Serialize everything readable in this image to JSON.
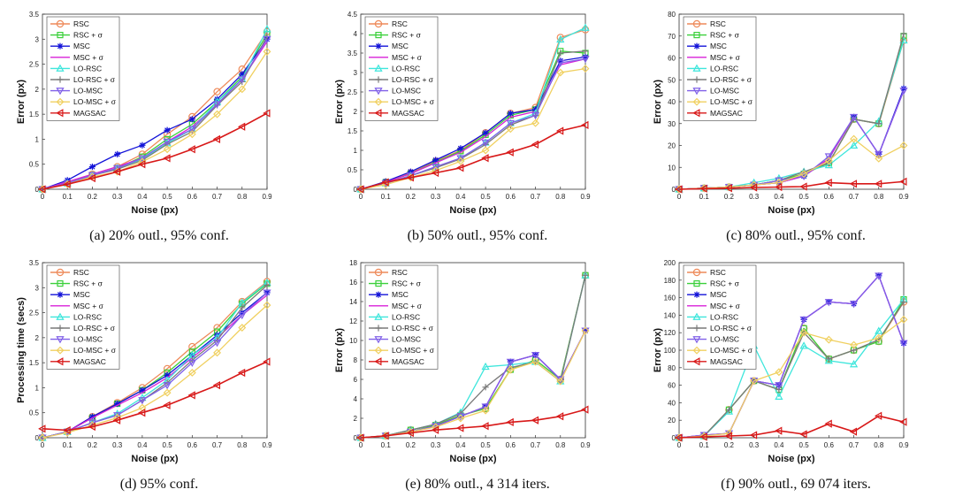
{
  "colors": {
    "RSC": "#ee8a5a",
    "RSC + σ": "#3ad03a",
    "MSC": "#1212d8",
    "MSC + σ": "#d820d8",
    "LO-RSC": "#3ee6dc",
    "LO-RSC + σ": "#7a7a7a",
    "LO-MSC": "#8060e8",
    "LO-MSC + σ": "#f0d060",
    "MAGSAC": "#d81818"
  },
  "markers": {
    "RSC": "circle",
    "RSC + σ": "square",
    "MSC": "star",
    "MSC + σ": "none",
    "LO-RSC": "triangle-up",
    "LO-RSC + σ": "plus",
    "LO-MSC": "triangle-down",
    "LO-MSC + σ": "diamond",
    "MAGSAC": "triangle-left"
  },
  "chart_data": [
    {
      "id": "a",
      "type": "line",
      "caption": "(a) 20% outl., 95% conf.",
      "xlabel": "Noise (px)",
      "ylabel": "Error (px)",
      "xlim": [
        0,
        0.9
      ],
      "ylim": [
        0,
        3.5
      ],
      "xticks": [
        "0",
        "0.1",
        "0.2",
        "0.3",
        "0.4",
        "0.5",
        "0.6",
        "0.7",
        "0.8",
        "0.9"
      ],
      "yticks": [
        "0",
        "0.5",
        "1",
        "1.5",
        "2",
        "2.5",
        "3",
        "3.5"
      ],
      "x": [
        0,
        0.1,
        0.2,
        0.3,
        0.4,
        0.5,
        0.6,
        0.7,
        0.8,
        0.9
      ],
      "series": [
        {
          "name": "RSC",
          "values": [
            0,
            0.12,
            0.3,
            0.45,
            0.7,
            1.1,
            1.45,
            1.95,
            2.4,
            3.15
          ]
        },
        {
          "name": "RSC + σ",
          "values": [
            0,
            0.12,
            0.28,
            0.42,
            0.65,
            1.0,
            1.3,
            1.75,
            2.25,
            3.1
          ]
        },
        {
          "name": "MSC",
          "values": [
            0,
            0.18,
            0.45,
            0.7,
            0.88,
            1.18,
            1.4,
            1.8,
            2.3,
            3.0
          ]
        },
        {
          "name": "MSC + σ",
          "values": [
            0,
            0.15,
            0.3,
            0.45,
            0.62,
            0.95,
            1.25,
            1.7,
            2.2,
            2.95
          ]
        },
        {
          "name": "LO-RSC",
          "values": [
            0,
            0.12,
            0.28,
            0.42,
            0.6,
            0.92,
            1.2,
            1.75,
            2.2,
            3.2
          ]
        },
        {
          "name": "LO-RSC + σ",
          "values": [
            0,
            0.12,
            0.28,
            0.4,
            0.58,
            0.9,
            1.15,
            1.68,
            2.15,
            3.05
          ]
        },
        {
          "name": "LO-MSC",
          "values": [
            0,
            0.12,
            0.28,
            0.42,
            0.62,
            0.95,
            1.2,
            1.7,
            2.2,
            3.0
          ]
        },
        {
          "name": "LO-MSC + σ",
          "values": [
            0,
            0.1,
            0.25,
            0.35,
            0.55,
            0.8,
            1.1,
            1.5,
            2.0,
            2.75
          ]
        },
        {
          "name": "MAGSAC",
          "values": [
            0,
            0.1,
            0.22,
            0.35,
            0.5,
            0.62,
            0.8,
            1.0,
            1.25,
            1.52
          ]
        }
      ]
    },
    {
      "id": "b",
      "type": "line",
      "caption": "(b) 50% outl., 95% conf.",
      "xlabel": "Noise (px)",
      "ylabel": "Error (px)",
      "xlim": [
        0,
        0.9
      ],
      "ylim": [
        0,
        4.5
      ],
      "xticks": [
        "0",
        "0.1",
        "0.2",
        "0.3",
        "0.4",
        "0.5",
        "0.6",
        "0.7",
        "0.8",
        "0.9"
      ],
      "yticks": [
        "0",
        "0.5",
        "1",
        "1.5",
        "2",
        "2.5",
        "3",
        "3.5",
        "4",
        "4.5"
      ],
      "x": [
        0,
        0.1,
        0.2,
        0.3,
        0.4,
        0.5,
        0.6,
        0.7,
        0.8,
        0.9
      ],
      "series": [
        {
          "name": "RSC",
          "values": [
            0,
            0.18,
            0.42,
            0.72,
            1.0,
            1.45,
            1.95,
            2.1,
            3.9,
            4.1
          ]
        },
        {
          "name": "RSC + σ",
          "values": [
            0,
            0.18,
            0.4,
            0.7,
            0.98,
            1.4,
            1.9,
            2.05,
            3.55,
            3.5
          ]
        },
        {
          "name": "MSC",
          "values": [
            0,
            0.2,
            0.45,
            0.75,
            1.05,
            1.45,
            1.95,
            2.05,
            3.3,
            3.4
          ]
        },
        {
          "name": "MSC + σ",
          "values": [
            0,
            0.18,
            0.4,
            0.68,
            0.95,
            1.35,
            1.85,
            2.0,
            3.2,
            3.35
          ]
        },
        {
          "name": "LO-RSC",
          "values": [
            0,
            0.15,
            0.35,
            0.55,
            0.8,
            1.2,
            1.7,
            1.95,
            3.85,
            4.15
          ]
        },
        {
          "name": "LO-RSC + σ",
          "values": [
            0,
            0.15,
            0.35,
            0.55,
            0.78,
            1.15,
            1.65,
            1.9,
            3.5,
            3.55
          ]
        },
        {
          "name": "LO-MSC",
          "values": [
            0,
            0.15,
            0.35,
            0.58,
            0.8,
            1.2,
            1.7,
            1.9,
            3.25,
            3.35
          ]
        },
        {
          "name": "LO-MSC + σ",
          "values": [
            0,
            0.12,
            0.3,
            0.48,
            0.72,
            1.0,
            1.55,
            1.7,
            3.0,
            3.1
          ]
        },
        {
          "name": "MAGSAC",
          "values": [
            0,
            0.18,
            0.3,
            0.42,
            0.55,
            0.8,
            0.95,
            1.15,
            1.5,
            1.65
          ]
        }
      ]
    },
    {
      "id": "c",
      "type": "line",
      "caption": "(c) 80% outl., 95% conf.",
      "xlabel": "Noise (px)",
      "ylabel": "Error (px)",
      "xlim": [
        0,
        0.9
      ],
      "ylim": [
        0,
        80
      ],
      "xticks": [
        "0",
        "0.1",
        "0.2",
        "0.3",
        "0.4",
        "0.5",
        "0.6",
        "0.7",
        "0.8",
        "0.9"
      ],
      "yticks": [
        "0",
        "10",
        "20",
        "30",
        "40",
        "50",
        "60",
        "70",
        "80"
      ],
      "x": [
        0,
        0.1,
        0.2,
        0.3,
        0.4,
        0.5,
        0.6,
        0.7,
        0.8,
        0.9
      ],
      "series": [
        {
          "name": "RSC",
          "values": [
            0,
            0.5,
            1,
            2,
            4,
            7,
            12,
            32,
            30,
            68
          ]
        },
        {
          "name": "RSC + σ",
          "values": [
            0,
            0.5,
            1,
            2,
            4,
            7,
            12,
            32,
            30,
            70
          ]
        },
        {
          "name": "MSC",
          "values": [
            0,
            0.5,
            1,
            2,
            3,
            6,
            14,
            33,
            16,
            46
          ]
        },
        {
          "name": "MSC + σ",
          "values": [
            0,
            0.5,
            1,
            2,
            3,
            6,
            14,
            33,
            16,
            45
          ]
        },
        {
          "name": "LO-RSC",
          "values": [
            0,
            0.5,
            1,
            3,
            5,
            8,
            11,
            20,
            31,
            68
          ]
        },
        {
          "name": "LO-RSC + σ",
          "values": [
            0,
            0.5,
            1,
            2,
            4,
            8,
            12,
            32,
            30,
            71
          ]
        },
        {
          "name": "LO-MSC",
          "values": [
            0,
            0.5,
            1,
            2,
            4,
            6,
            15,
            33,
            16,
            45
          ]
        },
        {
          "name": "LO-MSC + σ",
          "values": [
            0,
            0.5,
            1,
            2,
            3,
            7,
            13,
            23,
            14,
            20
          ]
        },
        {
          "name": "MAGSAC",
          "values": [
            0,
            0.3,
            0.5,
            0.8,
            1,
            1.2,
            3,
            2.5,
            2.5,
            3.5
          ]
        }
      ]
    },
    {
      "id": "d",
      "type": "line",
      "caption": "(d) 95% conf.",
      "xlabel": "Noise (px)",
      "ylabel": "Processing time (secs)",
      "xlim": [
        0,
        0.9
      ],
      "ylim": [
        0,
        3.5
      ],
      "xticks": [
        "0",
        "0.1",
        "0.2",
        "0.3",
        "0.4",
        "0.5",
        "0.6",
        "0.7",
        "0.8",
        "0.9"
      ],
      "yticks": [
        "0",
        "0.5",
        "1",
        "1.5",
        "2",
        "2.5",
        "3",
        "3.5"
      ],
      "x": [
        0,
        0.1,
        0.2,
        0.3,
        0.4,
        0.5,
        0.6,
        0.7,
        0.8,
        0.9
      ],
      "series": [
        {
          "name": "RSC",
          "values": [
            0,
            0.12,
            0.42,
            0.7,
            1.0,
            1.38,
            1.82,
            2.2,
            2.72,
            3.12
          ]
        },
        {
          "name": "RSC + σ",
          "values": [
            0,
            0.12,
            0.4,
            0.68,
            0.95,
            1.3,
            1.72,
            2.12,
            2.68,
            3.08
          ]
        },
        {
          "name": "MSC",
          "values": [
            0,
            0.12,
            0.42,
            0.68,
            0.95,
            1.25,
            1.65,
            2.05,
            2.5,
            2.9
          ]
        },
        {
          "name": "MSC + σ",
          "values": [
            0,
            0.12,
            0.4,
            0.65,
            0.9,
            1.2,
            1.6,
            2.0,
            2.45,
            2.85
          ]
        },
        {
          "name": "LO-RSC",
          "values": [
            0,
            0.12,
            0.3,
            0.48,
            0.8,
            1.15,
            1.65,
            2.0,
            2.7,
            3.1
          ]
        },
        {
          "name": "LO-RSC + σ",
          "values": [
            0,
            0.12,
            0.3,
            0.45,
            0.75,
            1.1,
            1.55,
            1.95,
            2.6,
            3.05
          ]
        },
        {
          "name": "LO-MSC",
          "values": [
            0,
            0.12,
            0.3,
            0.45,
            0.75,
            1.05,
            1.5,
            1.9,
            2.45,
            2.9
          ]
        },
        {
          "name": "LO-MSC + σ",
          "values": [
            0,
            0.1,
            0.25,
            0.4,
            0.6,
            0.9,
            1.3,
            1.7,
            2.2,
            2.65
          ]
        },
        {
          "name": "MAGSAC",
          "values": [
            0.18,
            0.15,
            0.22,
            0.35,
            0.5,
            0.65,
            0.85,
            1.05,
            1.3,
            1.52
          ]
        }
      ]
    },
    {
      "id": "e",
      "type": "line",
      "caption": "(e) 80% outl., 4 314 iters.",
      "xlabel": "Noise (px)",
      "ylabel": "Error (px)",
      "xlim": [
        0,
        0.9
      ],
      "ylim": [
        0,
        18
      ],
      "xticks": [
        "0",
        "0.1",
        "0.2",
        "0.3",
        "0.4",
        "0.5",
        "0.6",
        "0.7",
        "0.8",
        "0.9"
      ],
      "yticks": [
        "0",
        "2",
        "4",
        "6",
        "8",
        "10",
        "12",
        "14",
        "16",
        "18"
      ],
      "x": [
        0,
        0.1,
        0.2,
        0.3,
        0.4,
        0.5,
        0.6,
        0.7,
        0.8,
        0.9
      ],
      "series": [
        {
          "name": "RSC",
          "values": [
            0,
            0.2,
            0.8,
            1.3,
            2.3,
            3.0,
            7.0,
            8.0,
            6.0,
            16.7
          ]
        },
        {
          "name": "RSC + σ",
          "values": [
            0,
            0.2,
            0.8,
            1.3,
            2.3,
            3.0,
            7.0,
            8.0,
            6.0,
            16.7
          ]
        },
        {
          "name": "MSC",
          "values": [
            0,
            0.2,
            0.6,
            1.2,
            2.2,
            3.2,
            7.8,
            8.5,
            6.0,
            11.0
          ]
        },
        {
          "name": "MSC + σ",
          "values": [
            0,
            0.2,
            0.6,
            1.2,
            2.2,
            3.2,
            7.8,
            8.5,
            6.0,
            11.0
          ]
        },
        {
          "name": "LO-RSC",
          "values": [
            0,
            0.2,
            0.8,
            1.4,
            2.6,
            7.3,
            7.5,
            7.8,
            5.8,
            16.7
          ]
        },
        {
          "name": "LO-RSC + σ",
          "values": [
            0,
            0.2,
            0.8,
            1.4,
            2.5,
            5.2,
            7.2,
            7.8,
            5.8,
            16.7
          ]
        },
        {
          "name": "LO-MSC",
          "values": [
            0,
            0.2,
            0.6,
            1.2,
            2.2,
            3.2,
            7.8,
            8.5,
            6.0,
            11.0
          ]
        },
        {
          "name": "LO-MSC + σ",
          "values": [
            0,
            0.2,
            0.6,
            1.1,
            2.0,
            2.8,
            7.0,
            7.8,
            5.8,
            11.0
          ]
        },
        {
          "name": "MAGSAC",
          "values": [
            0,
            0.2,
            0.5,
            0.8,
            1.0,
            1.2,
            1.6,
            1.8,
            2.2,
            2.9
          ]
        }
      ]
    },
    {
      "id": "f",
      "type": "line",
      "caption": "(f) 90% outl., 69 074 iters.",
      "xlabel": "Noise (px)",
      "ylabel": "Error (px)",
      "xlim": [
        0,
        0.9
      ],
      "ylim": [
        0,
        200
      ],
      "xticks": [
        "0",
        "0.1",
        "0.2",
        "0.3",
        "0.4",
        "0.5",
        "0.6",
        "0.7",
        "0.8",
        "0.9"
      ],
      "yticks": [
        "0",
        "20",
        "40",
        "60",
        "80",
        "100",
        "120",
        "140",
        "160",
        "180",
        "200"
      ],
      "x": [
        0,
        0.1,
        0.2,
        0.3,
        0.4,
        0.5,
        0.6,
        0.7,
        0.8,
        0.9
      ],
      "series": [
        {
          "name": "RSC",
          "values": [
            0,
            2,
            32,
            65,
            55,
            125,
            90,
            100,
            110,
            155
          ]
        },
        {
          "name": "RSC + σ",
          "values": [
            0,
            2,
            32,
            65,
            55,
            125,
            90,
            100,
            110,
            158
          ]
        },
        {
          "name": "MSC",
          "values": [
            0,
            3,
            5,
            65,
            60,
            135,
            155,
            153,
            185,
            108
          ]
        },
        {
          "name": "MSC + σ",
          "values": [
            0,
            3,
            5,
            65,
            60,
            135,
            155,
            153,
            185,
            108
          ]
        },
        {
          "name": "LO-RSC",
          "values": [
            0,
            2,
            30,
            105,
            47,
            105,
            88,
            84,
            122,
            158
          ]
        },
        {
          "name": "LO-RSC + σ",
          "values": [
            0,
            2,
            32,
            65,
            55,
            120,
            90,
            100,
            112,
            155
          ]
        },
        {
          "name": "LO-MSC",
          "values": [
            0,
            3,
            5,
            65,
            60,
            135,
            155,
            153,
            185,
            108
          ]
        },
        {
          "name": "LO-MSC + σ",
          "values": [
            0,
            2,
            5,
            65,
            75,
            120,
            112,
            106,
            114,
            135
          ]
        },
        {
          "name": "MAGSAC",
          "values": [
            0,
            1,
            2,
            3,
            8,
            4,
            16,
            7,
            25,
            18
          ]
        }
      ]
    }
  ]
}
